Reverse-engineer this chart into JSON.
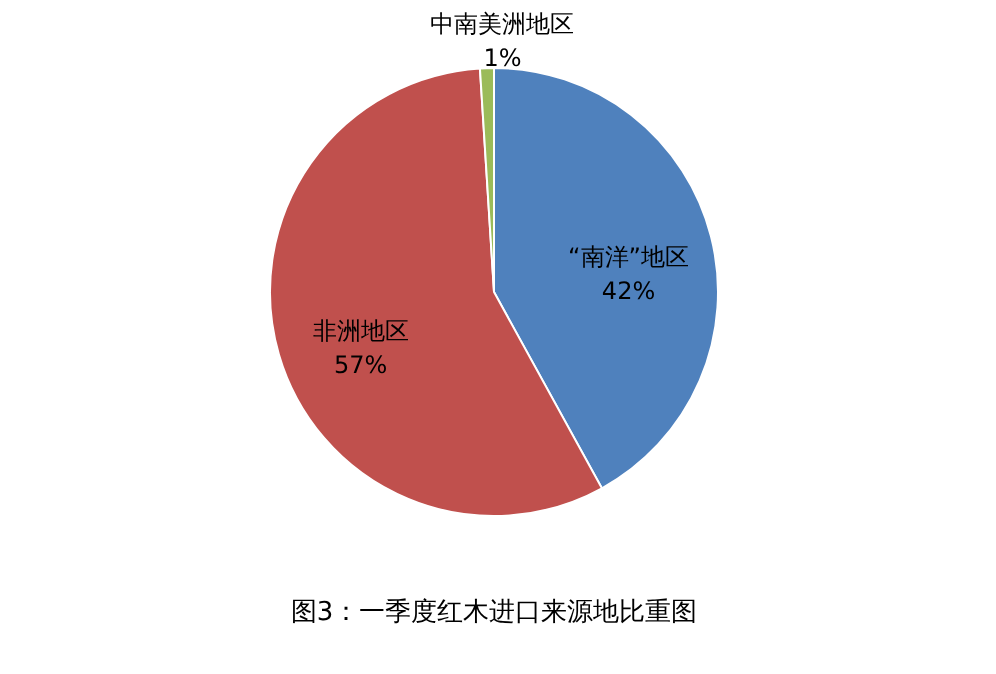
{
  "chart_data": {
    "type": "pie",
    "title": "图3：一季度红木进口来源地比重图",
    "categories": [
      "“南洋”地区",
      "非洲地区",
      "中南美洲地区"
    ],
    "values": [
      42,
      57,
      1
    ],
    "value_labels": [
      "42%",
      "57%",
      "1%"
    ],
    "colors": [
      "#4f81bd",
      "#c0504d",
      "#9bbb59"
    ]
  }
}
